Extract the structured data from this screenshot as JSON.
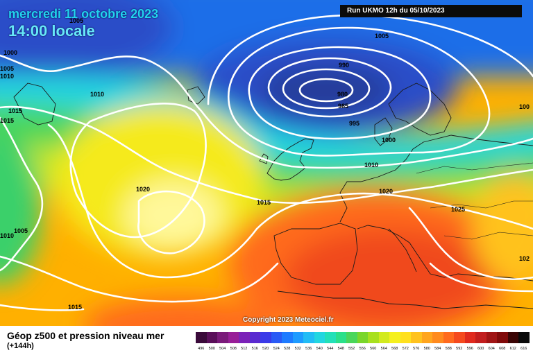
{
  "header": {
    "date": "mercredi 11 octobre 2023",
    "time": "14:00 locale",
    "run": "Run UKMO 12h du 05/10/2023"
  },
  "copyright": "Copyright 2023 Meteociel.fr",
  "legend": {
    "title": "Géop z500 et pression niveau mer",
    "subtitle": "(+144h)",
    "scale": [
      {
        "label": "496",
        "color": "#3a0a3a"
      },
      {
        "label": "500",
        "color": "#5a0f5a"
      },
      {
        "label": "504",
        "color": "#7a1a7a"
      },
      {
        "label": "508",
        "color": "#981e98"
      },
      {
        "label": "512",
        "color": "#7b22b8"
      },
      {
        "label": "516",
        "color": "#5a2ad0"
      },
      {
        "label": "520",
        "color": "#3a3ae8"
      },
      {
        "label": "524",
        "color": "#2a5af5"
      },
      {
        "label": "528",
        "color": "#1e7bff"
      },
      {
        "label": "532",
        "color": "#1e9bff"
      },
      {
        "label": "536",
        "color": "#22bcf5"
      },
      {
        "label": "540",
        "color": "#22d6e0"
      },
      {
        "label": "544",
        "color": "#22e0b8"
      },
      {
        "label": "548",
        "color": "#2ae08a"
      },
      {
        "label": "552",
        "color": "#4ad65a"
      },
      {
        "label": "556",
        "color": "#7ad62a"
      },
      {
        "label": "560",
        "color": "#a8e01e"
      },
      {
        "label": "564",
        "color": "#d2ea1e"
      },
      {
        "label": "568",
        "color": "#f5f01e"
      },
      {
        "label": "572",
        "color": "#ffe01e"
      },
      {
        "label": "576",
        "color": "#ffc21e"
      },
      {
        "label": "580",
        "color": "#ffa51e"
      },
      {
        "label": "584",
        "color": "#ff8a1e"
      },
      {
        "label": "588",
        "color": "#ff6a1e"
      },
      {
        "label": "592",
        "color": "#f54a1e"
      },
      {
        "label": "596",
        "color": "#e02a1e"
      },
      {
        "label": "600",
        "color": "#c21e1e"
      },
      {
        "label": "604",
        "color": "#a01414"
      },
      {
        "label": "608",
        "color": "#800a0a"
      },
      {
        "label": "612",
        "color": "#3a0505"
      },
      {
        "label": "616",
        "color": "#0a0a0a"
      }
    ]
  },
  "isobar_labels": [
    {
      "text": "1005"
    },
    {
      "text": "1000"
    },
    {
      "text": "1005"
    },
    {
      "text": "1010"
    },
    {
      "text": "1010"
    },
    {
      "text": "1015"
    },
    {
      "text": "1015"
    },
    {
      "text": "1020"
    },
    {
      "text": "1015"
    },
    {
      "text": "1005"
    },
    {
      "text": "1010"
    },
    {
      "text": "1015"
    },
    {
      "text": "1005"
    },
    {
      "text": "990"
    },
    {
      "text": "980"
    },
    {
      "text": "985"
    },
    {
      "text": "995"
    },
    {
      "text": "1000"
    },
    {
      "text": "1010"
    },
    {
      "text": "1020"
    },
    {
      "text": "1015"
    },
    {
      "text": "1025"
    },
    {
      "text": "100"
    },
    {
      "text": "102"
    }
  ]
}
